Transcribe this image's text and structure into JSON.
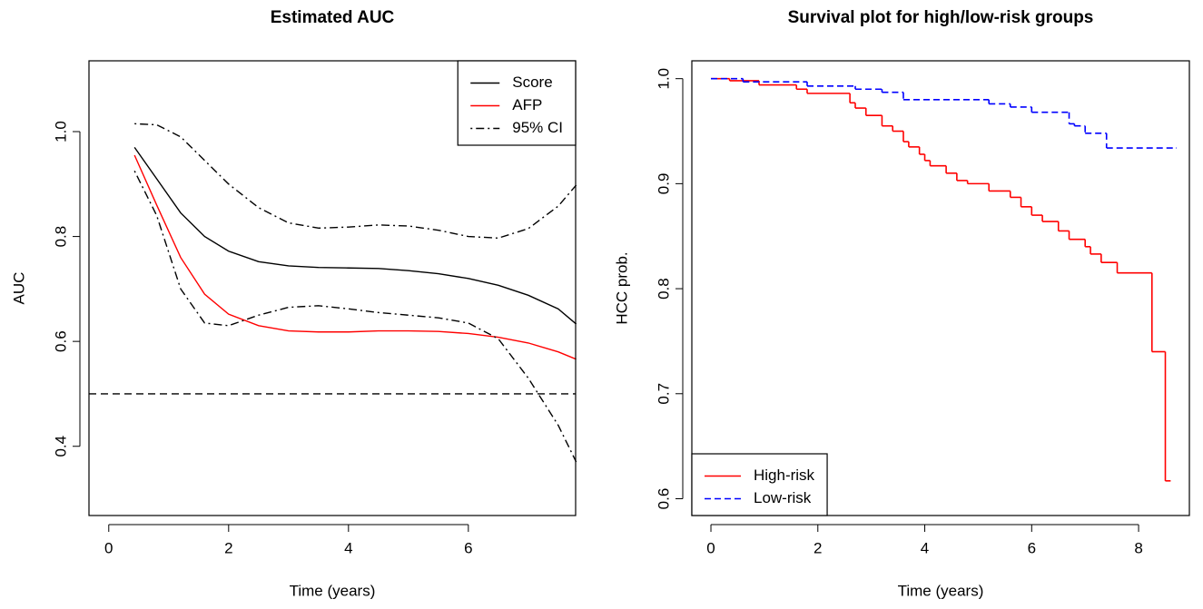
{
  "chart_data": [
    {
      "type": "line",
      "title": "Estimated AUC",
      "xlabel": "Time (years)",
      "ylabel": "AUC",
      "xlim": [
        -0.33,
        7.79
      ],
      "ylim": [
        0.268,
        1.135
      ],
      "xticks": [
        0,
        2,
        4,
        6
      ],
      "yticks": [
        {
          "value": 0.4,
          "label": "0.4"
        },
        {
          "value": 0.6,
          "label": "0.6"
        },
        {
          "value": 0.8,
          "label": "0.8"
        },
        {
          "value": 1.0,
          "label": "1.0"
        }
      ],
      "hline": 0.5,
      "legend": "topright",
      "x": [
        0.43,
        0.8,
        1.2,
        1.6,
        2,
        2.5,
        3,
        3.5,
        4,
        4.5,
        5,
        5.5,
        6,
        6.5,
        7,
        7.5,
        7.8
      ],
      "series": [
        {
          "name": "Score",
          "color": "#000000",
          "linestyle": "solid",
          "values": [
            0.97,
            0.91,
            0.845,
            0.8,
            0.772,
            0.752,
            0.744,
            0.741,
            0.74,
            0.739,
            0.735,
            0.729,
            0.72,
            0.707,
            0.688,
            0.662,
            0.633
          ]
        },
        {
          "name": "AFP",
          "color": "#ff0000",
          "linestyle": "solid",
          "values": [
            0.955,
            0.86,
            0.76,
            0.69,
            0.652,
            0.63,
            0.62,
            0.618,
            0.618,
            0.62,
            0.62,
            0.619,
            0.615,
            0.608,
            0.597,
            0.58,
            0.566
          ]
        },
        {
          "name": "95% CI",
          "color": "#000000",
          "linestyle": "dotdash",
          "values": [
            1.015,
            1.013,
            0.99,
            0.945,
            0.9,
            0.855,
            0.826,
            0.816,
            0.818,
            0.822,
            0.82,
            0.812,
            0.8,
            0.797,
            0.815,
            0.858,
            0.898
          ],
          "lower": [
            0.925,
            0.84,
            0.7,
            0.635,
            0.63,
            0.65,
            0.665,
            0.668,
            0.662,
            0.655,
            0.65,
            0.645,
            0.635,
            0.605,
            0.53,
            0.44,
            0.37
          ]
        }
      ]
    },
    {
      "type": "step",
      "title": "Survival plot for high/low-risk groups",
      "xlabel": "Time (years)",
      "ylabel": "HCC prob.",
      "xlim": [
        -0.357,
        8.95
      ],
      "ylim": [
        0.584,
        1.017
      ],
      "xticks": [
        0,
        2,
        4,
        6,
        8
      ],
      "yticks": [
        0.6,
        0.7,
        0.8,
        0.9,
        {
          "value": 1.0,
          "label": "1.0"
        }
      ],
      "legend": "bottomleft",
      "series": [
        {
          "name": "High-risk",
          "color": "#ff0000",
          "linestyle": "solid",
          "x": [
            0,
            0.35,
            0.9,
            1.6,
            1.8,
            2.6,
            2.7,
            2.9,
            3.2,
            3.4,
            3.6,
            3.7,
            3.9,
            4.0,
            4.1,
            4.4,
            4.6,
            4.8,
            5.2,
            5.6,
            5.8,
            6.0,
            6.2,
            6.5,
            6.7,
            7.0,
            7.1,
            7.3,
            7.6,
            8.25,
            8.5,
            8.6
          ],
          "values": [
            1.0,
            0.998,
            0.994,
            0.99,
            0.986,
            0.977,
            0.972,
            0.965,
            0.955,
            0.95,
            0.94,
            0.935,
            0.928,
            0.922,
            0.917,
            0.91,
            0.903,
            0.9,
            0.893,
            0.887,
            0.878,
            0.87,
            0.864,
            0.855,
            0.847,
            0.84,
            0.833,
            0.825,
            0.815,
            0.74,
            0.617,
            0.617
          ]
        },
        {
          "name": "Low-risk",
          "color": "#0000ff",
          "linestyle": "dashed",
          "x": [
            0,
            0.6,
            1.8,
            2.7,
            3.2,
            3.6,
            5.2,
            5.6,
            6.0,
            6.7,
            6.8,
            7.0,
            7.4,
            8.7
          ],
          "values": [
            1.0,
            0.997,
            0.993,
            0.99,
            0.987,
            0.98,
            0.976,
            0.973,
            0.968,
            0.957,
            0.955,
            0.948,
            0.934,
            0.934
          ]
        }
      ]
    }
  ]
}
